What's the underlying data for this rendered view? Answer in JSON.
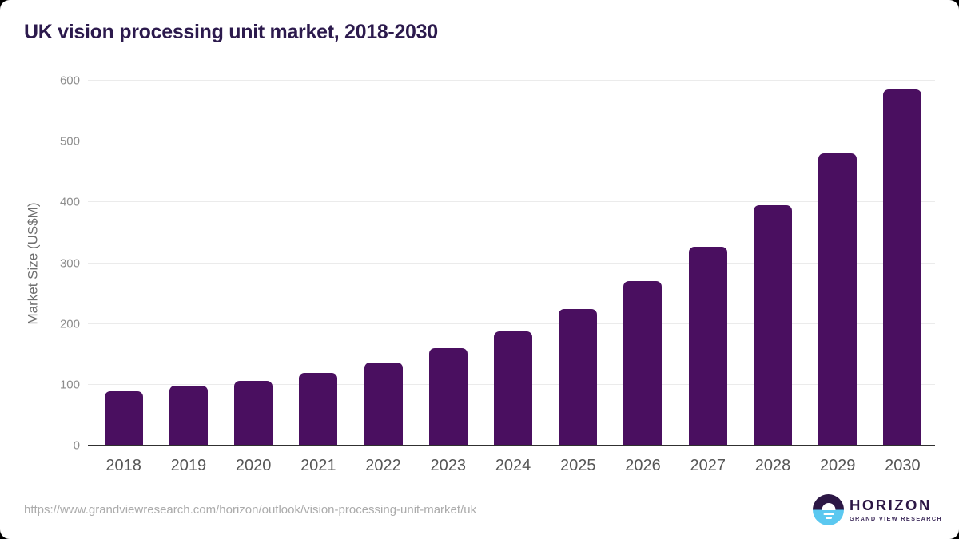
{
  "page": {
    "title": "UK vision processing unit market, 2018-2030",
    "source_url": "https://www.grandviewresearch.com/horizon/outlook/vision-processing-unit-market/uk"
  },
  "logo": {
    "wordmark": "HORIZON",
    "subtitle": "GRAND VIEW RESEARCH"
  },
  "colors": {
    "bar": "#4a0f60",
    "title": "#2c1a4d",
    "grid": "#ebebeb",
    "axis": "#303030",
    "y_tick": "#8d8d8d",
    "x_tick": "#575757",
    "y_axis_title": "#6f6f6f",
    "source_url": "#ababab",
    "logo_purple": "#2c1745",
    "logo_blue": "#5bc8f0"
  },
  "chart_data": {
    "type": "bar",
    "title": "UK vision processing unit market, 2018-2030",
    "categories": [
      "2018",
      "2019",
      "2020",
      "2021",
      "2022",
      "2023",
      "2024",
      "2025",
      "2026",
      "2027",
      "2028",
      "2029",
      "2030"
    ],
    "values": [
      89,
      99,
      107,
      120,
      137,
      160,
      188,
      224,
      270,
      327,
      395,
      480,
      585
    ],
    "xlabel": "",
    "ylabel": "Market Size (US$M)",
    "ylim": [
      0,
      600
    ],
    "yticks": [
      0,
      100,
      200,
      300,
      400,
      500,
      600
    ],
    "grid": true,
    "legend": false,
    "bar_color": "#4a0f60"
  }
}
